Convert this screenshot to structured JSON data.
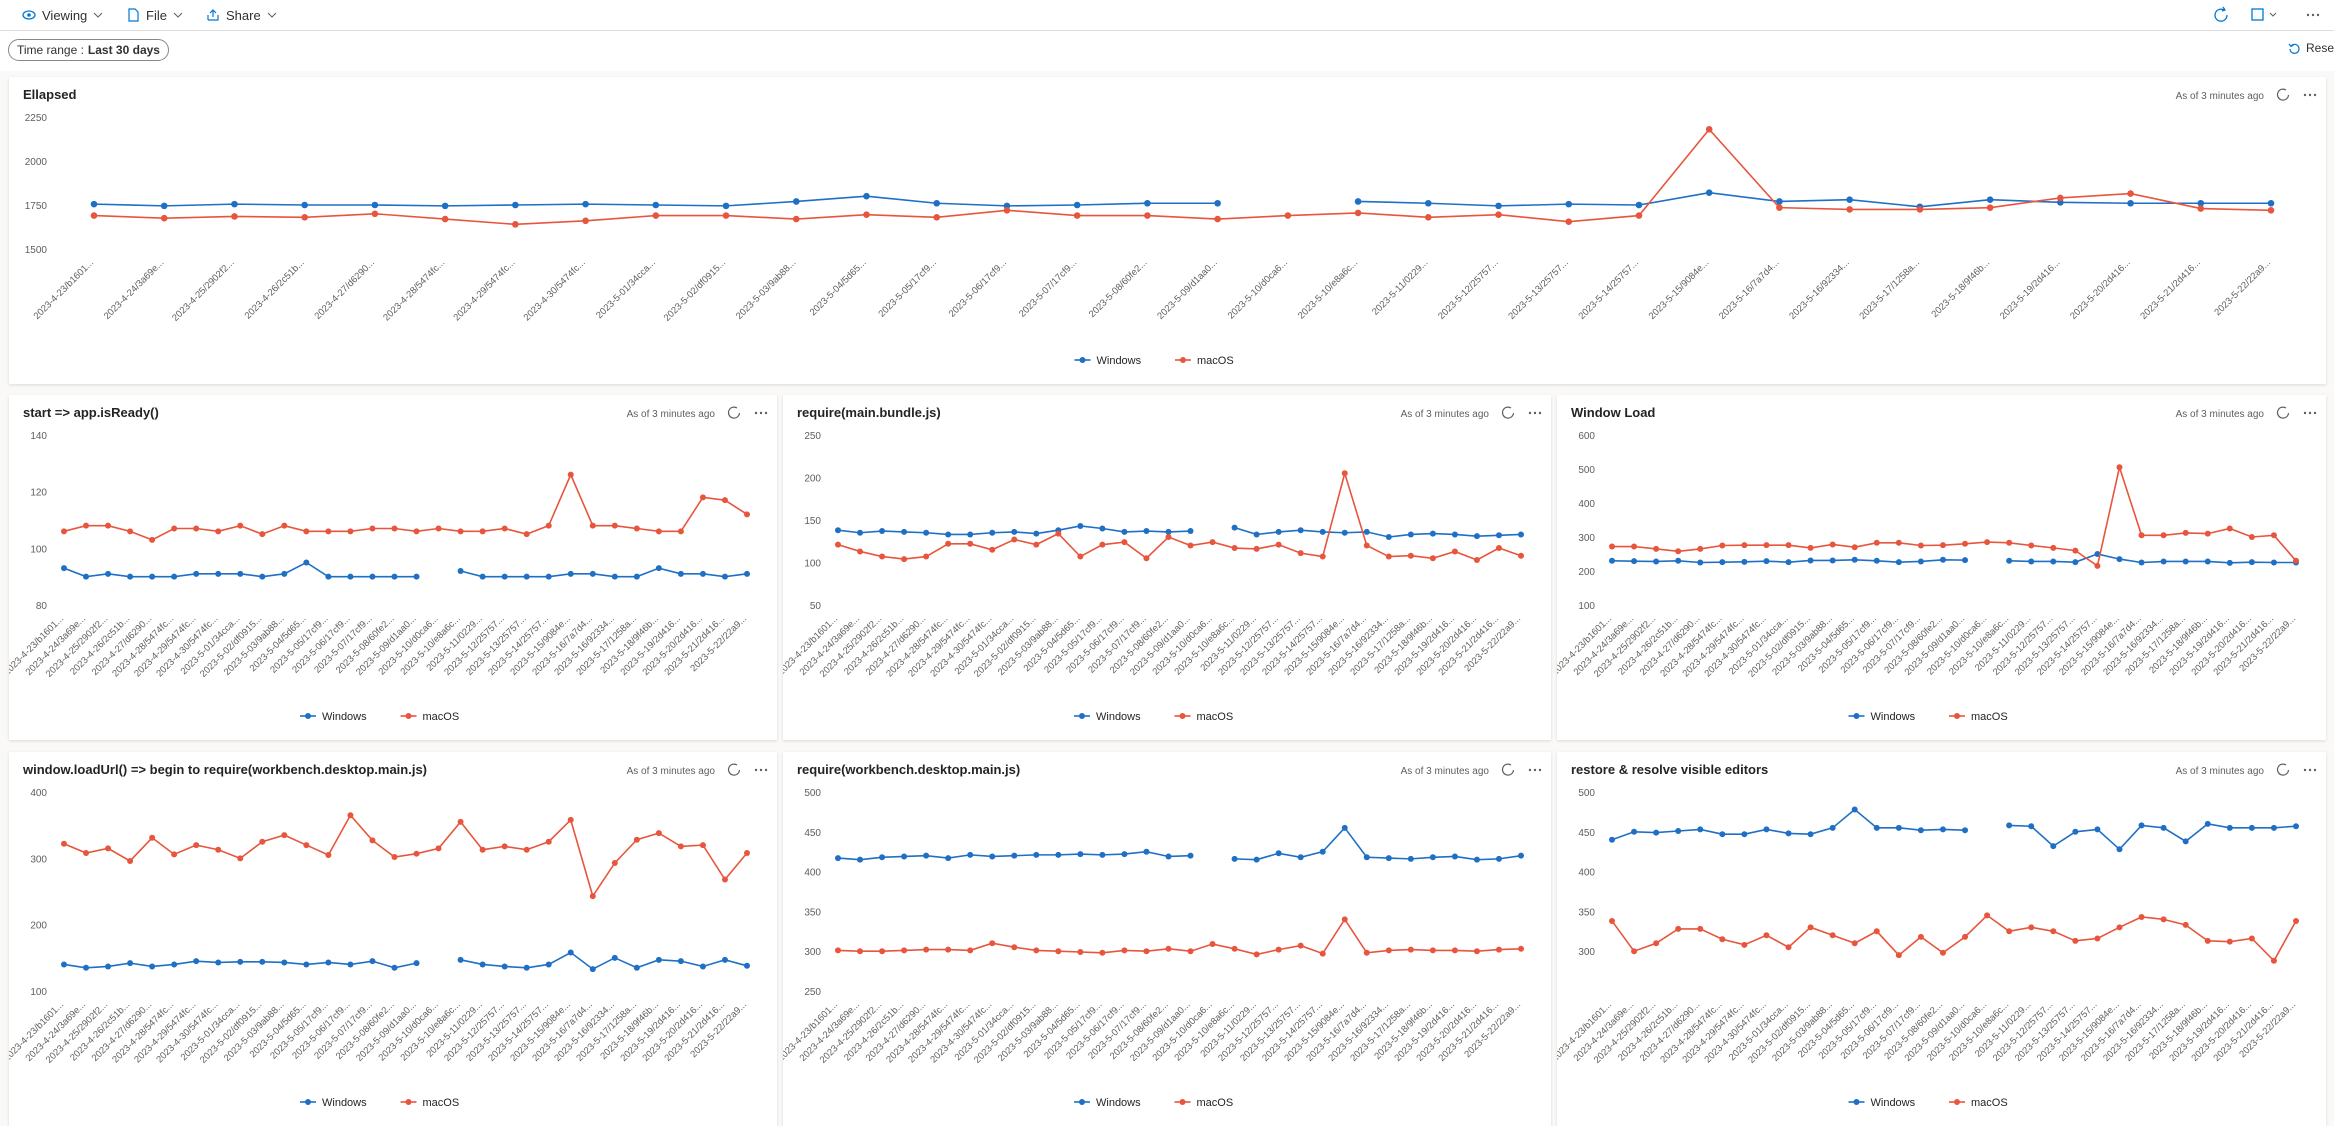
{
  "toolbar": {
    "viewing": "Viewing",
    "file": "File",
    "share": "Share"
  },
  "filters": {
    "time_range_label": "Time range :",
    "time_range_value": "Last 30 days",
    "reset": "Rese"
  },
  "chart_data": [
    {
      "type": "line",
      "title": "Ellapsed",
      "updated": "As of 3 minutes ago",
      "categories": [
        "2023-4-23/b1601...",
        "2023-4-24/3a69e...",
        "2023-4-25/2902f2...",
        "2023-4-26/2c51b...",
        "2023-4-27/d6290...",
        "2023-4-28/5474fc...",
        "2023-4-29/5474fc...",
        "2023-4-30/5474fc...",
        "2023-5-01/34cca...",
        "2023-5-02/df0915...",
        "2023-5-03/9ab88...",
        "2023-5-04/5d65...",
        "2023-5-05/17cf9...",
        "2023-5-06/17cf9...",
        "2023-5-07/17cf9...",
        "2023-5-08/60fe2...",
        "2023-5-09/d1aa0...",
        "2023-5-10/d0ca6...",
        "2023-5-10/e8a6c...",
        "2023-5-11/0229...",
        "2023-5-12/25757...",
        "2023-5-13/25757...",
        "2023-5-14/25757...",
        "2023-5-15/9084e...",
        "2023-5-16/7a7d4...",
        "2023-5-16/92334...",
        "2023-5-17/1258a...",
        "2023-5-18/9f46b...",
        "2023-5-19/2d416...",
        "2023-5-20/2d416...",
        "2023-5-21/2d416...",
        "2023-5-22/22a9..."
      ],
      "series": [
        {
          "name": "Windows",
          "color": "#1f6fc5",
          "values": [
            1755,
            1745,
            1755,
            1750,
            1750,
            1745,
            1750,
            1755,
            1750,
            1745,
            1770,
            1800,
            1760,
            1745,
            1750,
            1760,
            1760,
            null,
            1770,
            1760,
            1745,
            1755,
            1750,
            1820,
            1770,
            1780,
            1740,
            1780,
            1765,
            1760,
            1760,
            1760
          ]
        },
        {
          "name": "macOS",
          "color": "#e8553d",
          "values": [
            1690,
            1675,
            1685,
            1680,
            1700,
            1670,
            1640,
            1660,
            1690,
            1690,
            1670,
            1695,
            1680,
            1720,
            1690,
            1690,
            1670,
            1690,
            1705,
            1680,
            1695,
            1655,
            1690,
            2180,
            1735,
            1725,
            1725,
            1735,
            1790,
            1815,
            1730,
            1720
          ]
        }
      ],
      "ylim": [
        1500,
        2250
      ],
      "yticks": [
        1500,
        1750,
        2000,
        2250
      ],
      "grid": false
    },
    {
      "type": "line",
      "title": "start => app.isReady()",
      "updated": "As of 3 minutes ago",
      "categories": [
        "2023-4-23/b1601...",
        "2023-4-24/3a69e...",
        "2023-4-25/2902f2...",
        "2023-4-26/2c51b...",
        "2023-4-27/d6290...",
        "2023-4-28/5474fc...",
        "2023-4-29/5474fc...",
        "2023-4-30/5474fc...",
        "2023-5-01/34cca...",
        "2023-5-02/df0915...",
        "2023-5-03/9ab88...",
        "2023-5-04/5d65...",
        "2023-5-05/17cf9...",
        "2023-5-06/17cf9...",
        "2023-5-07/17cf9...",
        "2023-5-08/60fe2...",
        "2023-5-09/d1aa0...",
        "2023-5-10/d0ca6...",
        "2023-5-10/e8a6c...",
        "2023-5-11/0229...",
        "2023-5-12/25757...",
        "2023-5-13/25757...",
        "2023-5-14/25757...",
        "2023-5-15/9084e...",
        "2023-5-16/7a7d4...",
        "2023-5-16/92334...",
        "2023-5-17/1258a...",
        "2023-5-18/9f46b...",
        "2023-5-19/2d416...",
        "2023-5-20/2d416...",
        "2023-5-21/2d416...",
        "2023-5-22/22a9..."
      ],
      "series": [
        {
          "name": "Windows",
          "color": "#1f6fc5",
          "values": [
            93,
            90,
            91,
            90,
            90,
            90,
            91,
            91,
            91,
            90,
            91,
            95,
            90,
            90,
            90,
            90,
            90,
            null,
            92,
            90,
            90,
            90,
            90,
            91,
            91,
            90,
            90,
            93,
            91,
            91,
            90,
            91
          ]
        },
        {
          "name": "macOS",
          "color": "#e8553d",
          "values": [
            106,
            108,
            108,
            106,
            103,
            107,
            107,
            106,
            108,
            105,
            108,
            106,
            106,
            106,
            107,
            107,
            106,
            107,
            106,
            106,
            107,
            105,
            108,
            126,
            108,
            108,
            107,
            106,
            106,
            118,
            117,
            112
          ]
        }
      ],
      "ylim": [
        80,
        140
      ],
      "yticks": [
        80,
        100,
        120,
        140
      ],
      "grid": false
    },
    {
      "type": "line",
      "title": "require(main.bundle.js)",
      "updated": "As of 3 minutes ago",
      "categories": [
        "2023-4-23/b1601...",
        "2023-4-24/3a69e...",
        "2023-4-25/2902f2...",
        "2023-4-26/2c51b...",
        "2023-4-27/d6290...",
        "2023-4-28/5474fc...",
        "2023-4-29/5474fc...",
        "2023-4-30/5474fc...",
        "2023-5-01/34cca...",
        "2023-5-02/df0915...",
        "2023-5-03/9ab88...",
        "2023-5-04/5d65...",
        "2023-5-05/17cf9...",
        "2023-5-06/17cf9...",
        "2023-5-07/17cf9...",
        "2023-5-08/60fe2...",
        "2023-5-09/d1aa0...",
        "2023-5-10/d0ca6...",
        "2023-5-10/e8a6c...",
        "2023-5-11/0229...",
        "2023-5-12/25757...",
        "2023-5-13/25757...",
        "2023-5-14/25757...",
        "2023-5-15/9084e...",
        "2023-5-16/7a7d4...",
        "2023-5-16/92334...",
        "2023-5-17/1258a...",
        "2023-5-18/9f46b...",
        "2023-5-19/2d416...",
        "2023-5-20/2d416...",
        "2023-5-21/2d416...",
        "2023-5-22/22a9..."
      ],
      "series": [
        {
          "name": "Windows",
          "color": "#1f6fc5",
          "values": [
            138,
            135,
            137,
            136,
            135,
            133,
            133,
            135,
            136,
            134,
            138,
            143,
            140,
            136,
            137,
            136,
            137,
            null,
            141,
            133,
            136,
            138,
            136,
            135,
            136,
            130,
            133,
            134,
            133,
            131,
            132,
            133
          ]
        },
        {
          "name": "macOS",
          "color": "#e8553d",
          "values": [
            121,
            113,
            107,
            104,
            107,
            122,
            122,
            115,
            127,
            121,
            134,
            107,
            121,
            124,
            105,
            130,
            120,
            124,
            117,
            116,
            121,
            111,
            107,
            205,
            120,
            107,
            108,
            105,
            113,
            103,
            117,
            108
          ]
        }
      ],
      "ylim": [
        50,
        250
      ],
      "yticks": [
        50,
        100,
        150,
        200,
        250
      ],
      "grid": false
    },
    {
      "type": "line",
      "title": "Window Load",
      "updated": "As of 3 minutes ago",
      "categories": [
        "2023-4-23/b1601...",
        "2023-4-24/3a69e...",
        "2023-4-25/2902f2...",
        "2023-4-26/2c51b...",
        "2023-4-27/d6290...",
        "2023-4-28/5474fc...",
        "2023-4-29/5474fc...",
        "2023-4-30/5474fc...",
        "2023-5-01/34cca...",
        "2023-5-02/df0915...",
        "2023-5-03/9ab88...",
        "2023-5-04/5d65...",
        "2023-5-05/17cf9...",
        "2023-5-06/17cf9...",
        "2023-5-07/17cf9...",
        "2023-5-08/60fe2...",
        "2023-5-09/d1aa0...",
        "2023-5-10/d0ca6...",
        "2023-5-10/e8a6c...",
        "2023-5-11/0229...",
        "2023-5-12/25757...",
        "2023-5-13/25757...",
        "2023-5-14/25757...",
        "2023-5-15/9084e...",
        "2023-5-16/7a7d4...",
        "2023-5-16/92334...",
        "2023-5-17/1258a...",
        "2023-5-18/9f46b...",
        "2023-5-19/2d416...",
        "2023-5-20/2d416...",
        "2023-5-21/2d416...",
        "2023-5-22/22a9..."
      ],
      "series": [
        {
          "name": "Windows",
          "color": "#1f6fc5",
          "values": [
            230,
            229,
            228,
            230,
            225,
            226,
            227,
            229,
            226,
            231,
            231,
            233,
            230,
            226,
            228,
            233,
            232,
            null,
            230,
            228,
            228,
            226,
            250,
            235,
            225,
            228,
            228,
            228,
            224,
            226,
            225,
            225
          ]
        },
        {
          "name": "macOS",
          "color": "#e8553d",
          "values": [
            272,
            272,
            265,
            258,
            265,
            275,
            276,
            276,
            276,
            268,
            278,
            270,
            283,
            283,
            275,
            276,
            280,
            285,
            283,
            275,
            268,
            260,
            215,
            505,
            305,
            305,
            312,
            310,
            325,
            300,
            305,
            230
          ]
        }
      ],
      "ylim": [
        100,
        600
      ],
      "yticks": [
        100,
        200,
        300,
        400,
        500,
        600
      ],
      "grid": false
    },
    {
      "type": "line",
      "title": "window.loadUrl() => begin to require(workbench.desktop.main.js)",
      "updated": "As of 3 minutes ago",
      "categories": [
        "2023-4-23/b1601...",
        "2023-4-24/3a69e...",
        "2023-4-25/2902f2...",
        "2023-4-26/2c51b...",
        "2023-4-27/d6290...",
        "2023-4-28/5474fc...",
        "2023-4-29/5474fc...",
        "2023-4-30/5474fc...",
        "2023-5-01/34cca...",
        "2023-5-02/df0915...",
        "2023-5-03/9ab88...",
        "2023-5-04/5d65...",
        "2023-5-05/17cf9...",
        "2023-5-06/17cf9...",
        "2023-5-07/17cf9...",
        "2023-5-08/60fe2...",
        "2023-5-09/d1aa0...",
        "2023-5-10/d0ca6...",
        "2023-5-10/e8a6c...",
        "2023-5-11/0229...",
        "2023-5-12/25757...",
        "2023-5-13/25757...",
        "2023-5-14/25757...",
        "2023-5-15/9084e...",
        "2023-5-16/7a7d4...",
        "2023-5-16/92334...",
        "2023-5-17/1258a...",
        "2023-5-18/9f46b...",
        "2023-5-19/2d416...",
        "2023-5-20/2d416...",
        "2023-5-21/2d416...",
        "2023-5-22/22a9..."
      ],
      "series": [
        {
          "name": "Windows",
          "color": "#1f6fc5",
          "values": [
            140,
            135,
            137,
            142,
            137,
            140,
            145,
            143,
            144,
            144,
            143,
            140,
            143,
            140,
            145,
            135,
            142,
            null,
            147,
            140,
            137,
            135,
            140,
            158,
            133,
            150,
            135,
            147,
            145,
            137,
            147,
            138
          ]
        },
        {
          "name": "macOS",
          "color": "#e8553d",
          "values": [
            322,
            308,
            315,
            296,
            331,
            306,
            320,
            313,
            300,
            325,
            335,
            320,
            305,
            365,
            327,
            302,
            307,
            315,
            355,
            313,
            318,
            313,
            325,
            358,
            243,
            293,
            328,
            338,
            318,
            320,
            268,
            308
          ]
        }
      ],
      "ylim": [
        100,
        400
      ],
      "yticks": [
        100,
        200,
        300,
        400
      ],
      "grid": false
    },
    {
      "type": "line",
      "title": "require(workbench.desktop.main.js)",
      "updated": "As of 3 minutes ago",
      "categories": [
        "2023-4-23/b1601...",
        "2023-4-24/3a69e...",
        "2023-4-25/2902f2...",
        "2023-4-26/2c51b...",
        "2023-4-27/d6290...",
        "2023-4-28/5474fc...",
        "2023-4-29/5474fc...",
        "2023-4-30/5474fc...",
        "2023-5-01/34cca...",
        "2023-5-02/df0915...",
        "2023-5-03/9ab88...",
        "2023-5-04/5d65...",
        "2023-5-05/17cf9...",
        "2023-5-06/17cf9...",
        "2023-5-07/17cf9...",
        "2023-5-08/60fe2...",
        "2023-5-09/d1aa0...",
        "2023-5-10/d0ca6...",
        "2023-5-10/e8a6c...",
        "2023-5-11/0229...",
        "2023-5-12/25757...",
        "2023-5-13/25757...",
        "2023-5-14/25757...",
        "2023-5-15/9084e...",
        "2023-5-16/7a7d4...",
        "2023-5-16/92334...",
        "2023-5-17/1258a...",
        "2023-5-18/9f46b...",
        "2023-5-19/2d416...",
        "2023-5-20/2d416...",
        "2023-5-21/2d416...",
        "2023-5-22/22a9..."
      ],
      "series": [
        {
          "name": "Windows",
          "color": "#1f6fc5",
          "values": [
            417,
            415,
            418,
            419,
            420,
            417,
            421,
            419,
            420,
            421,
            421,
            422,
            421,
            422,
            425,
            419,
            420,
            null,
            416,
            415,
            423,
            418,
            425,
            455,
            418,
            417,
            416,
            418,
            419,
            415,
            416,
            420
          ]
        },
        {
          "name": "macOS",
          "color": "#e8553d",
          "values": [
            301,
            300,
            300,
            301,
            302,
            302,
            301,
            310,
            305,
            301,
            300,
            299,
            298,
            301,
            300,
            303,
            300,
            309,
            303,
            296,
            302,
            307,
            297,
            340,
            298,
            301,
            302,
            301,
            301,
            300,
            302,
            303
          ]
        }
      ],
      "ylim": [
        250,
        500
      ],
      "yticks": [
        250,
        300,
        350,
        400,
        450,
        500
      ],
      "grid": false
    },
    {
      "type": "line",
      "title": "restore & resolve visible editors",
      "updated": "As of 3 minutes ago",
      "categories": [
        "2023-4-23/b1601...",
        "2023-4-24/3a69e...",
        "2023-4-25/2902f2...",
        "2023-4-26/2c51b...",
        "2023-4-27/d6290...",
        "2023-4-28/5474fc...",
        "2023-4-29/5474fc...",
        "2023-4-30/5474fc...",
        "2023-5-01/34cca...",
        "2023-5-02/df0915...",
        "2023-5-03/9ab88...",
        "2023-5-04/5d65...",
        "2023-5-05/17cf9...",
        "2023-5-06/17cf9...",
        "2023-5-07/17cf9...",
        "2023-5-08/60fe2...",
        "2023-5-09/d1aa0...",
        "2023-5-10/d0ca6...",
        "2023-5-10/e8a6c...",
        "2023-5-11/0229...",
        "2023-5-12/25757...",
        "2023-5-13/25757...",
        "2023-5-14/25757...",
        "2023-5-15/9084e...",
        "2023-5-16/7a7d4...",
        "2023-5-16/92334...",
        "2023-5-17/1258a...",
        "2023-5-18/9f46b...",
        "2023-5-19/2d416...",
        "2023-5-20/2d416...",
        "2023-5-21/2d416...",
        "2023-5-22/22a9..."
      ],
      "series": [
        {
          "name": "Windows",
          "color": "#1f6fc5",
          "values": [
            440,
            450,
            449,
            451,
            453,
            447,
            447,
            453,
            448,
            447,
            455,
            478,
            455,
            455,
            452,
            453,
            452,
            null,
            458,
            457,
            432,
            450,
            453,
            428,
            458,
            455,
            438,
            460,
            455,
            455,
            455,
            457
          ]
        },
        {
          "name": "macOS",
          "color": "#e8553d",
          "values": [
            338,
            300,
            310,
            328,
            328,
            315,
            308,
            320,
            305,
            330,
            320,
            310,
            325,
            295,
            318,
            298,
            318,
            345,
            325,
            330,
            325,
            313,
            316,
            330,
            343,
            340,
            333,
            313,
            312,
            316,
            288,
            338
          ]
        }
      ],
      "ylim": [
        250,
        500
      ],
      "yticks": [
        300,
        350,
        400,
        450,
        500
      ],
      "grid": false
    }
  ]
}
